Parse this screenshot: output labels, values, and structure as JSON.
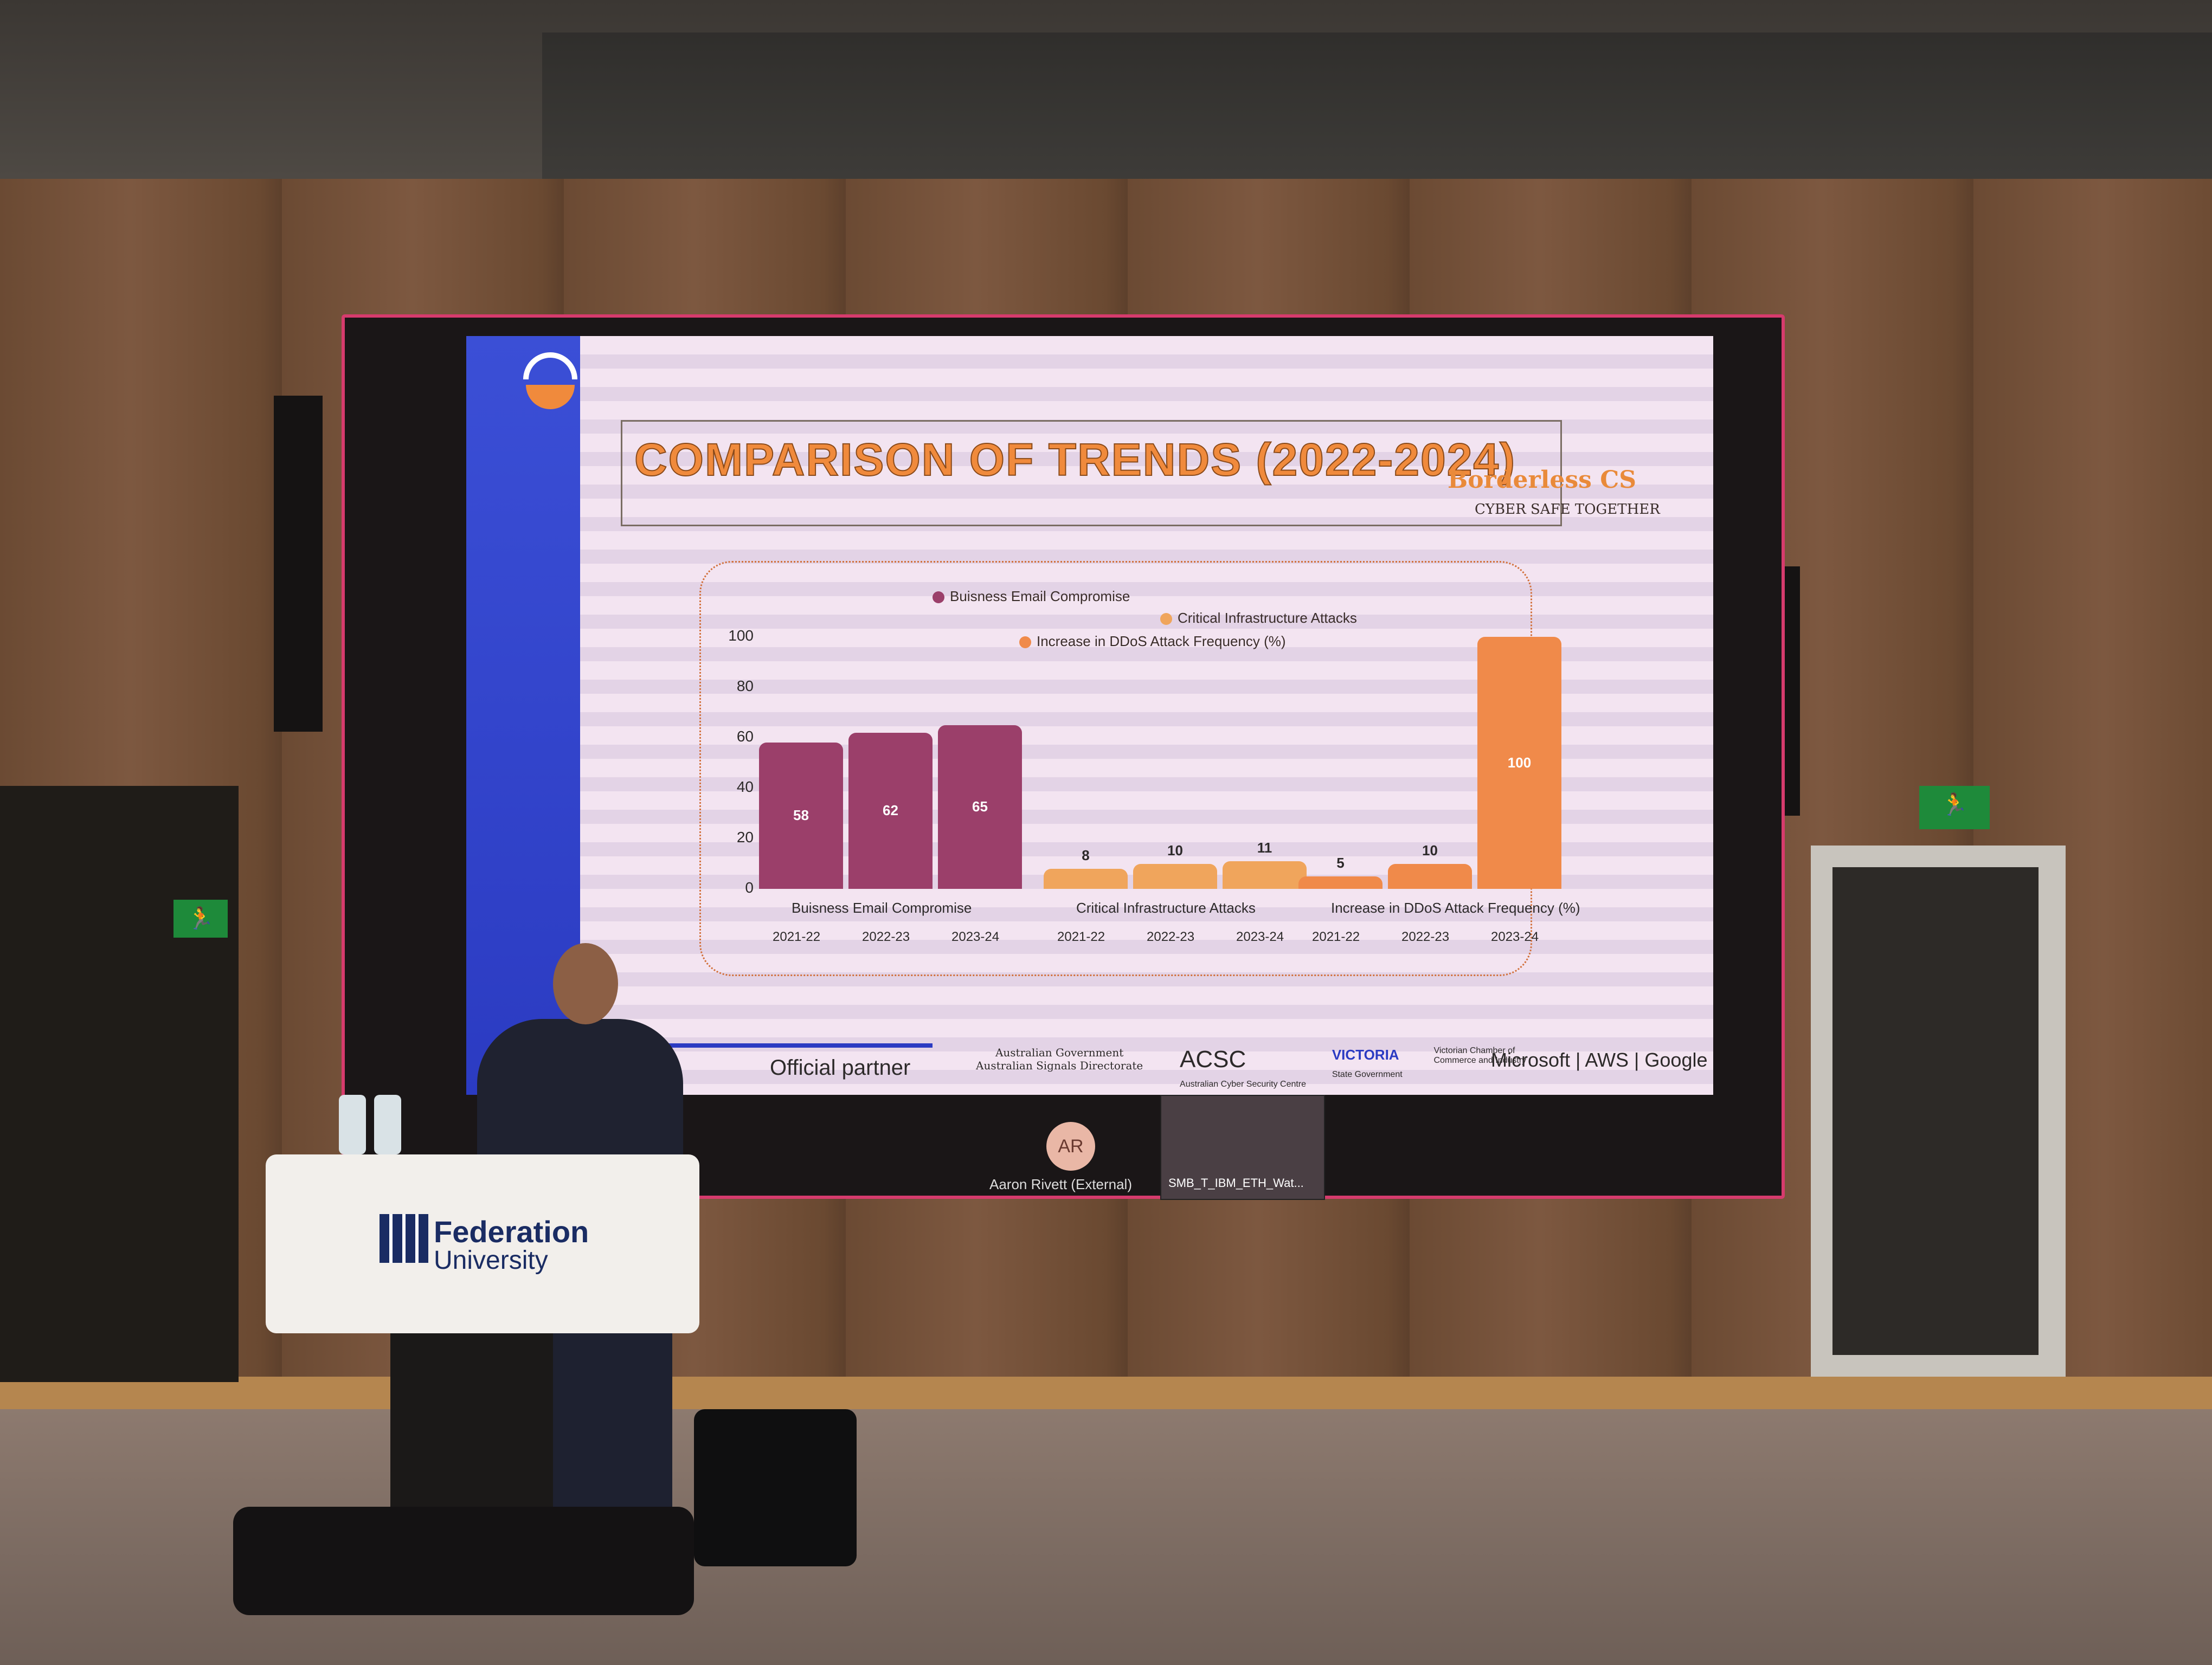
{
  "slide": {
    "title": "COMPARISON OF TRENDS (2022-2024)",
    "brand": "Borderless CS",
    "brand_tagline": "CYBER SAFE TOGETHER",
    "partner_label": "Official partner",
    "partner_logos": [
      "Australian Government",
      "Australian Signals Directorate",
      "ACSC",
      "Australian Cyber Security Centre",
      "VICTORIA",
      "State Government",
      "Victorian Chamber of Commerce and Industry"
    ],
    "partner_tail": "Microsoft | AWS | Google"
  },
  "chart_data": {
    "type": "bar",
    "y_ticks": [
      "100",
      "80",
      "60",
      "40",
      "20",
      "0"
    ],
    "ylim": [
      0,
      100
    ],
    "legend": [
      {
        "name": "Buisness Email Compromise",
        "color": "#9b3f6a"
      },
      {
        "name": "Critical Infrastructure Attacks",
        "color": "#f0a55c"
      },
      {
        "name": "Increase in DDoS Attack Frequency (%)",
        "color": "#f08a4a"
      }
    ],
    "groups": [
      {
        "name": "Buisness Email Compromise",
        "color": "#9b3f6a",
        "categories": [
          "2021-22",
          "2022-23",
          "2023-24"
        ],
        "values": [
          58,
          62,
          65
        ]
      },
      {
        "name": "Critical Infrastructure Attacks",
        "color": "#f0a55c",
        "categories": [
          "2021-22",
          "2022-23",
          "2023-24"
        ],
        "values": [
          8,
          10,
          11
        ]
      },
      {
        "name": "Increase in DDoS Attack Frequency (%)",
        "color": "#f08a4a",
        "categories": [
          "2021-22",
          "2022-23",
          "2023-24"
        ],
        "values": [
          5,
          10,
          100
        ]
      }
    ]
  },
  "call": {
    "avatar_initials": "AR",
    "participant_name": "Aaron Rivett (External)",
    "thumbnail_label": "SMB_T_IBM_ETH_Wat..."
  },
  "podium": {
    "university_name": "Federation",
    "university_sub": "University"
  },
  "room": {
    "exit_sign_left": "🏃",
    "exit_sign_right": "🏃"
  }
}
